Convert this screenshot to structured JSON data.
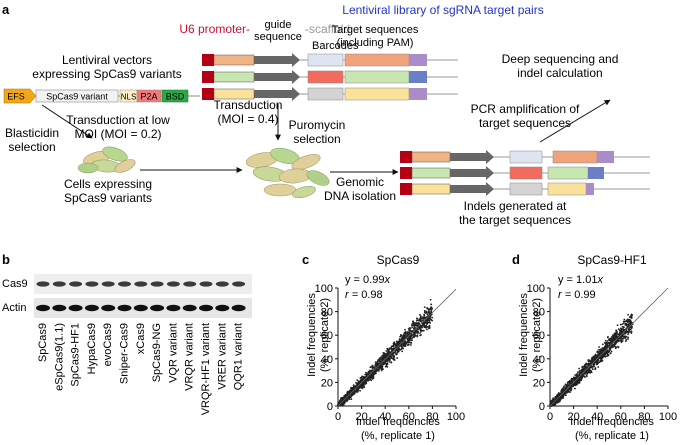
{
  "panels": {
    "a": "a",
    "b": "b",
    "c": "c",
    "d": "d"
  },
  "schematic": {
    "library_title": "Lentiviral library of sgRNA target pairs",
    "u6": "U6 promoter-",
    "guide_line1": "guide",
    "guide_line2": "sequence",
    "scaffold": "-scaffold",
    "barcodes": "Barcodes",
    "target_line1": "Target sequences",
    "target_line2": "(including PAM)",
    "vectors_line1": "Lentiviral vectors",
    "vectors_line2": "expressing SpCas9 variants",
    "efs": "EFS",
    "spcas9_variant": "SpCas9 variant",
    "nls": "NLS",
    "p2a": "P2A",
    "bsd": "BSD",
    "transduction_line1": "Transduction",
    "transduction_line2": "(MOI = 0.4)",
    "lowmoi_line1": "Transduction at low",
    "lowmoi_line2": "MOI (MOI = 0.2)",
    "blasticidin_line1": "Blasticidin",
    "blasticidin_line2": "selection",
    "puromycin_line1": "Puromycin",
    "puromycin_line2": "selection",
    "cells_line1": "Cells expressing",
    "cells_line2": "SpCas9 variants",
    "genomic_line1": "Genomic",
    "genomic_line2": "DNA isolation",
    "pcr_line1": "PCR amplification of",
    "pcr_line2": "target sequences",
    "deep_line1": "Deep sequencing and",
    "deep_line2": "indel calculation",
    "indels_line1": "Indels generated at",
    "indels_line2": "the target sequences",
    "colors": {
      "u6": "#c8102e",
      "library": "#2233cc",
      "scaffold": "#999999",
      "arrow": "#606060"
    }
  },
  "blot": {
    "row_labels": [
      "Cas9",
      "Actin"
    ],
    "lanes": [
      "SpCas9",
      "eSpCas9(1.1)",
      "SpCas9-HF1",
      "HypaCas9",
      "evoCas9",
      "Sniper-Cas9",
      "xCas9",
      "SpCas9-NG",
      "VQR variant",
      "VRQR variant",
      "VRQR-HF1 variant",
      "VRER variant",
      "QQR1 variant"
    ]
  },
  "scatter_c": {
    "title": "SpCas9",
    "eq_prefix": "y = ",
    "eq_coef": "0.99",
    "eq_var": "x",
    "r_prefix": "r = ",
    "r_value": "0.98"
  },
  "scatter_d": {
    "title": "SpCas9-HF1",
    "eq_prefix": "y = ",
    "eq_coef": "1.01",
    "eq_var": "x",
    "r_prefix": "r = ",
    "r_value": "0.99"
  },
  "axes": {
    "ylabel_line1": "Indel frequencies",
    "ylabel_line2": "(%, replicate 2)",
    "xlabel_line1": "Indel frequencies",
    "xlabel_line2": "(%, replicate 1)"
  },
  "chart_data": [
    {
      "type": "scatter",
      "title": "SpCas9",
      "xlabel": "Indel frequencies (%, replicate 1)",
      "ylabel": "Indel frequencies (%, replicate 2)",
      "xlim": [
        0,
        100
      ],
      "ylim": [
        0,
        100
      ],
      "ticks": [
        0,
        20,
        40,
        60,
        80,
        100
      ],
      "slope": 0.99,
      "r": 0.98,
      "max_value": 80
    },
    {
      "type": "scatter",
      "title": "SpCas9-HF1",
      "xlabel": "Indel frequencies (%, replicate 1)",
      "ylabel": "Indel frequencies (%, replicate 2)",
      "xlim": [
        0,
        100
      ],
      "ylim": [
        0,
        100
      ],
      "ticks": [
        0,
        20,
        40,
        60,
        80,
        100
      ],
      "slope": 1.01,
      "r": 0.99,
      "max_value": 70
    }
  ]
}
